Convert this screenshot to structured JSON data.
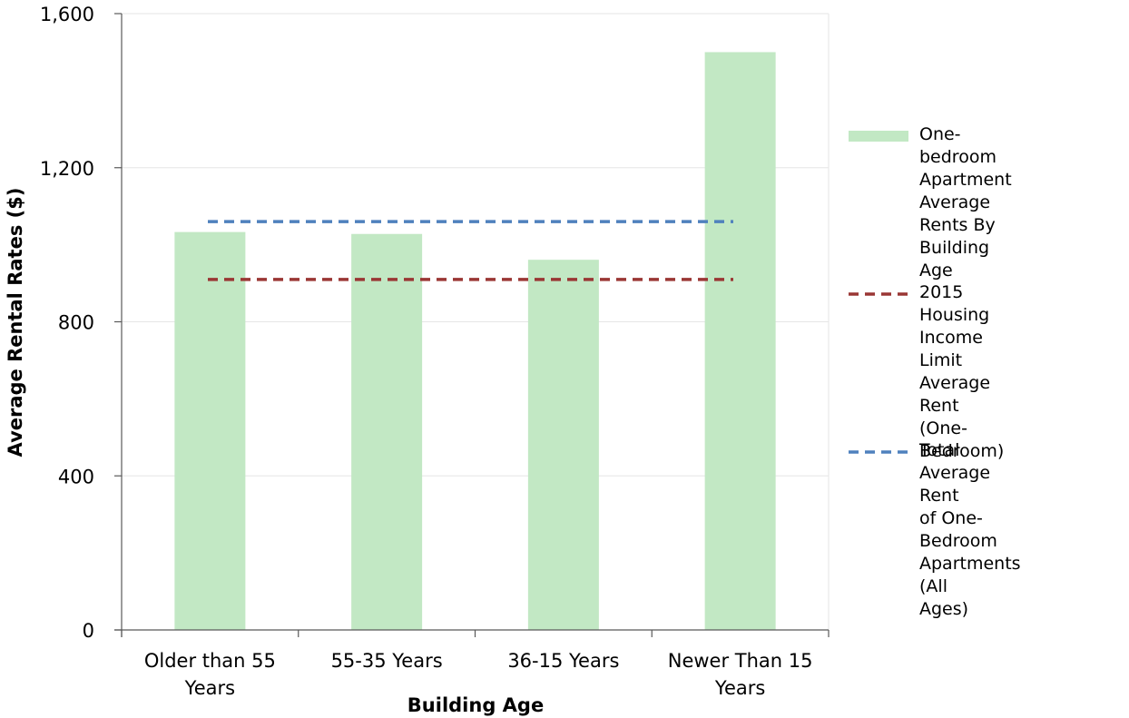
{
  "chart_data": {
    "type": "bar",
    "title": "",
    "xlabel": "Building Age",
    "ylabel": "Average Rental Rates ($)",
    "categories": [
      "Older than 55\nYears",
      "55-35 Years",
      "36-15 Years",
      "Newer Than 15\nYears"
    ],
    "ylim": [
      0,
      1600
    ],
    "yticks": [
      0,
      400,
      800,
      1200,
      1600
    ],
    "ytick_labels": [
      "0",
      "400",
      "800",
      "1,200",
      "1,600"
    ],
    "grid": true,
    "legend_position": "right",
    "series": [
      {
        "name": "One-bedroom Apartment Average Rents By Building Age",
        "type": "bar",
        "color": "#c2e8c4",
        "values": [
          1033,
          1028,
          961,
          1500
        ]
      },
      {
        "name": "2015 Housing Income Limit Average Rent (One-Bedroom)",
        "type": "dashed-line",
        "color": "#9a3634",
        "value": 910
      },
      {
        "name": "Total Average Rent of One-Bedroom Apartments (All Ages)",
        "type": "dashed-line",
        "color": "#4f81bd",
        "value": 1060
      }
    ]
  }
}
